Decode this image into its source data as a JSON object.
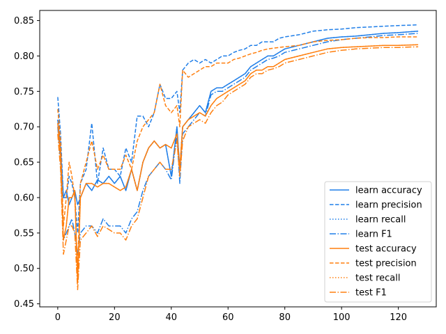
{
  "chart_data": {
    "type": "line",
    "title": "",
    "xlabel": "",
    "ylabel": "",
    "xlim": [
      -6.35,
      133.35
    ],
    "ylim": [
      0.4457,
      0.8643
    ],
    "xticks": [
      0,
      20,
      40,
      60,
      80,
      100,
      120
    ],
    "yticks": [
      0.45,
      0.5,
      0.55,
      0.6,
      0.65,
      0.7,
      0.75,
      0.8,
      0.85
    ],
    "grid": false,
    "legend_position": "lower-right",
    "colors": {
      "learn": "#1f7ee8",
      "test": "#ff7f0e"
    },
    "anchors": {
      "x": [
        0,
        1,
        2,
        3,
        4,
        5,
        6,
        7,
        8,
        10,
        12,
        14,
        16,
        18,
        20,
        22,
        24,
        26,
        28,
        30,
        32,
        34,
        36,
        38,
        40,
        42,
        43,
        44,
        46,
        48,
        50,
        52,
        54,
        56,
        58,
        60,
        62,
        64,
        66,
        68,
        70,
        72,
        74,
        76,
        78,
        80,
        85,
        90,
        95,
        100,
        105,
        110,
        115,
        120,
        127
      ],
      "learn accuracy": [
        0.71,
        0.67,
        0.6,
        0.61,
        0.59,
        0.6,
        0.61,
        0.59,
        0.6,
        0.62,
        0.61,
        0.625,
        0.62,
        0.63,
        0.62,
        0.63,
        0.61,
        0.64,
        0.61,
        0.65,
        0.67,
        0.68,
        0.67,
        0.675,
        0.63,
        0.7,
        0.64,
        0.7,
        0.71,
        0.72,
        0.73,
        0.72,
        0.75,
        0.755,
        0.755,
        0.76,
        0.765,
        0.77,
        0.775,
        0.785,
        0.79,
        0.795,
        0.8,
        0.8,
        0.805,
        0.81,
        0.815,
        0.82,
        0.825,
        0.827,
        0.828,
        0.83,
        0.832,
        0.833,
        0.835
      ],
      "learn precision": [
        0.742,
        0.69,
        0.6,
        0.6,
        0.63,
        0.62,
        0.6,
        0.55,
        0.62,
        0.64,
        0.705,
        0.62,
        0.67,
        0.64,
        0.64,
        0.63,
        0.67,
        0.65,
        0.715,
        0.715,
        0.7,
        0.72,
        0.76,
        0.74,
        0.74,
        0.75,
        0.72,
        0.78,
        0.79,
        0.795,
        0.79,
        0.795,
        0.79,
        0.795,
        0.8,
        0.8,
        0.805,
        0.808,
        0.81,
        0.815,
        0.815,
        0.82,
        0.82,
        0.82,
        0.825,
        0.827,
        0.83,
        0.835,
        0.837,
        0.838,
        0.84,
        0.841,
        0.842,
        0.843,
        0.844
      ],
      "learn recall": [
        0.71,
        0.67,
        0.6,
        0.61,
        0.59,
        0.6,
        0.61,
        0.59,
        0.6,
        0.62,
        0.61,
        0.625,
        0.62,
        0.63,
        0.62,
        0.63,
        0.61,
        0.64,
        0.61,
        0.65,
        0.67,
        0.68,
        0.67,
        0.675,
        0.63,
        0.7,
        0.64,
        0.7,
        0.71,
        0.72,
        0.73,
        0.72,
        0.75,
        0.755,
        0.755,
        0.76,
        0.765,
        0.77,
        0.775,
        0.785,
        0.79,
        0.795,
        0.8,
        0.8,
        0.805,
        0.81,
        0.815,
        0.82,
        0.825,
        0.827,
        0.828,
        0.83,
        0.832,
        0.833,
        0.835
      ],
      "learn F1": [
        0.7,
        0.65,
        0.54,
        0.55,
        0.56,
        0.57,
        0.55,
        0.52,
        0.55,
        0.56,
        0.56,
        0.55,
        0.57,
        0.56,
        0.56,
        0.56,
        0.55,
        0.57,
        0.58,
        0.61,
        0.63,
        0.64,
        0.65,
        0.64,
        0.625,
        0.69,
        0.62,
        0.69,
        0.7,
        0.71,
        0.72,
        0.715,
        0.745,
        0.75,
        0.75,
        0.755,
        0.76,
        0.765,
        0.77,
        0.78,
        0.785,
        0.79,
        0.795,
        0.797,
        0.8,
        0.805,
        0.81,
        0.815,
        0.82,
        0.823,
        0.825,
        0.827,
        0.829,
        0.83,
        0.832
      ],
      "test accuracy": [
        0.705,
        0.66,
        0.54,
        0.56,
        0.6,
        0.6,
        0.61,
        0.48,
        0.6,
        0.62,
        0.62,
        0.615,
        0.62,
        0.62,
        0.615,
        0.61,
        0.615,
        0.64,
        0.61,
        0.65,
        0.67,
        0.68,
        0.67,
        0.675,
        0.67,
        0.69,
        0.64,
        0.7,
        0.71,
        0.715,
        0.72,
        0.715,
        0.73,
        0.74,
        0.745,
        0.75,
        0.755,
        0.76,
        0.765,
        0.775,
        0.78,
        0.78,
        0.785,
        0.785,
        0.79,
        0.795,
        0.8,
        0.805,
        0.81,
        0.812,
        0.813,
        0.814,
        0.815,
        0.815,
        0.816
      ],
      "test precision": [
        0.725,
        0.68,
        0.56,
        0.6,
        0.65,
        0.63,
        0.6,
        0.5,
        0.62,
        0.65,
        0.68,
        0.64,
        0.66,
        0.64,
        0.64,
        0.64,
        0.66,
        0.64,
        0.68,
        0.7,
        0.71,
        0.72,
        0.76,
        0.73,
        0.72,
        0.73,
        0.7,
        0.78,
        0.77,
        0.775,
        0.78,
        0.785,
        0.785,
        0.79,
        0.79,
        0.79,
        0.795,
        0.797,
        0.8,
        0.803,
        0.805,
        0.808,
        0.81,
        0.811,
        0.812,
        0.813,
        0.815,
        0.82,
        0.822,
        0.823,
        0.825,
        0.826,
        0.826,
        0.827,
        0.827
      ],
      "test recall": [
        0.705,
        0.66,
        0.54,
        0.56,
        0.6,
        0.6,
        0.61,
        0.48,
        0.6,
        0.62,
        0.62,
        0.615,
        0.62,
        0.62,
        0.615,
        0.61,
        0.615,
        0.64,
        0.61,
        0.65,
        0.67,
        0.68,
        0.67,
        0.675,
        0.67,
        0.69,
        0.64,
        0.7,
        0.71,
        0.715,
        0.72,
        0.715,
        0.73,
        0.74,
        0.745,
        0.75,
        0.755,
        0.76,
        0.765,
        0.775,
        0.78,
        0.78,
        0.785,
        0.785,
        0.79,
        0.795,
        0.8,
        0.805,
        0.81,
        0.812,
        0.813,
        0.814,
        0.815,
        0.815,
        0.816
      ],
      "test F1": [
        0.69,
        0.64,
        0.52,
        0.54,
        0.56,
        0.56,
        0.55,
        0.47,
        0.54,
        0.55,
        0.56,
        0.545,
        0.56,
        0.555,
        0.55,
        0.55,
        0.54,
        0.56,
        0.57,
        0.6,
        0.63,
        0.64,
        0.65,
        0.64,
        0.64,
        0.68,
        0.63,
        0.68,
        0.7,
        0.705,
        0.71,
        0.705,
        0.72,
        0.73,
        0.735,
        0.745,
        0.75,
        0.755,
        0.76,
        0.77,
        0.775,
        0.775,
        0.78,
        0.782,
        0.785,
        0.79,
        0.795,
        0.8,
        0.805,
        0.808,
        0.81,
        0.811,
        0.812,
        0.812,
        0.813
      ]
    },
    "series": [
      {
        "name": "learn accuracy",
        "group": "learn",
        "dash": "solid"
      },
      {
        "name": "learn precision",
        "group": "learn",
        "dash": "dashed"
      },
      {
        "name": "learn recall",
        "group": "learn",
        "dash": "dotted"
      },
      {
        "name": "learn F1",
        "group": "learn",
        "dash": "dashdot"
      },
      {
        "name": "test accuracy",
        "group": "test",
        "dash": "solid"
      },
      {
        "name": "test precision",
        "group": "test",
        "dash": "dashed"
      },
      {
        "name": "test recall",
        "group": "test",
        "dash": "dotted"
      },
      {
        "name": "test F1",
        "group": "test",
        "dash": "dashdot"
      }
    ]
  }
}
